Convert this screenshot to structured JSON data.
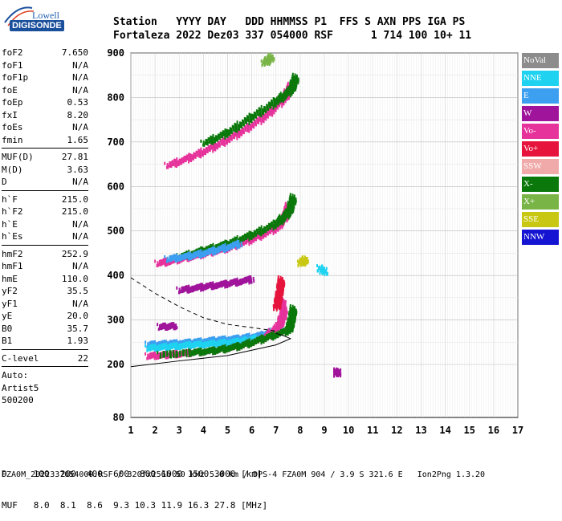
{
  "logo": {
    "brand": "Lowell",
    "product": "DIGISONDE"
  },
  "header": {
    "line1": "Station   YYYY DAY   DDD HHMMSS P1  FFS S AXN PPS IGA PS",
    "line2": "Fortaleza 2022 Dez03 337 054000 RSF      1 714 100 10+ 11"
  },
  "params": [
    {
      "k": "foF2",
      "v": "7.650"
    },
    {
      "k": "foF1",
      "v": "N/A"
    },
    {
      "k": "foF1p",
      "v": "N/A"
    },
    {
      "k": "foE",
      "v": "N/A"
    },
    {
      "k": "foEp",
      "v": "0.53"
    },
    {
      "k": "fxI",
      "v": "8.20"
    },
    {
      "k": "foEs",
      "v": "N/A"
    },
    {
      "k": "fmin",
      "v": "1.65"
    }
  ],
  "params2": [
    {
      "k": "MUF(D)",
      "v": "27.81"
    },
    {
      "k": "M(D)",
      "v": "3.63"
    },
    {
      "k": "D",
      "v": "N/A"
    }
  ],
  "params3": [
    {
      "k": "h`F",
      "v": "215.0"
    },
    {
      "k": "h`F2",
      "v": "215.0"
    },
    {
      "k": "h`E",
      "v": "N/A"
    },
    {
      "k": "h`Es",
      "v": "N/A"
    }
  ],
  "params4": [
    {
      "k": "hmF2",
      "v": "252.9"
    },
    {
      "k": "hmF1",
      "v": "N/A"
    },
    {
      "k": "hmE",
      "v": "110.0"
    },
    {
      "k": "yF2",
      "v": "35.5"
    },
    {
      "k": "yF1",
      "v": "N/A"
    },
    {
      "k": "yE",
      "v": "20.0"
    },
    {
      "k": "B0",
      "v": "35.7"
    },
    {
      "k": "B1",
      "v": "1.93"
    }
  ],
  "params5": [
    {
      "k": "C-level",
      "v": "22"
    }
  ],
  "auto": {
    "l1": "Auto:",
    "l2": "Artist5",
    "l3": "500200"
  },
  "legend": [
    {
      "label": "NoVal",
      "color": "#8c8c8c"
    },
    {
      "label": "NNE",
      "color": "#1ed2f0"
    },
    {
      "label": "E",
      "color": "#3c9ff0"
    },
    {
      "label": "W",
      "color": "#a0149b"
    },
    {
      "label": "Vo-",
      "color": "#e6329b"
    },
    {
      "label": "Vo+",
      "color": "#e6143c"
    },
    {
      "label": "SSW",
      "color": "#f0aaaa"
    },
    {
      "label": "X-",
      "color": "#0a780a"
    },
    {
      "label": "X+",
      "color": "#78b446"
    },
    {
      "label": "SSE",
      "color": "#c8c814"
    },
    {
      "label": "NNW",
      "color": "#1414d2"
    }
  ],
  "footer": {
    "d_row": "D     100  200  400  600  800 1000 1500 3000 [km]",
    "muf_row": "MUF   8.0  8.1  8.6  9.3 10.3 11.9 16.3 27.8 [MHz]"
  },
  "status": "FZA0M_2022337054000.RSF / 320fx256h 50 kHz 5.0 km / DPS-4 FZA0M 904 / 3.9 S 321.6 E   Ion2Png 1.3.20",
  "chart_data": {
    "type": "scatter",
    "xlim": [
      1,
      17
    ],
    "ylim": [
      80,
      900
    ],
    "x_ticks": [
      "1",
      "2",
      "3",
      "4",
      "5",
      "6",
      "7",
      "8",
      "9",
      "10",
      "11",
      "12",
      "13",
      "14",
      "15",
      "16",
      "17"
    ],
    "y_ticks": [
      "80",
      "200",
      "300",
      "400",
      "500",
      "600",
      "700",
      "800",
      "900"
    ],
    "profile_curve": [
      [
        0.0,
        195
      ],
      [
        3,
        208
      ],
      [
        5,
        220
      ],
      [
        6,
        232
      ],
      [
        7,
        244
      ],
      [
        7.6,
        258
      ],
      [
        7.3,
        265
      ],
      [
        7,
        270
      ]
    ],
    "dashed_curve": [
      [
        0.0,
        395
      ],
      [
        2,
        360
      ],
      [
        3,
        330
      ],
      [
        4,
        305
      ],
      [
        5,
        290
      ],
      [
        6,
        283
      ],
      [
        7,
        275
      ]
    ],
    "traces": [
      {
        "color": "#3c9ff0",
        "points": [
          [
            1.7,
            248
          ],
          [
            2.5,
            250
          ],
          [
            3.5,
            253
          ],
          [
            4.5,
            258
          ],
          [
            5.5,
            262
          ],
          [
            6.5,
            270
          ],
          [
            7.2,
            285
          ]
        ]
      },
      {
        "color": "#1ed2f0",
        "points": [
          [
            1.7,
            240
          ],
          [
            2.5,
            243
          ],
          [
            3.5,
            247
          ],
          [
            4.5,
            250
          ],
          [
            5.5,
            255
          ],
          [
            6.2,
            262
          ]
        ]
      },
      {
        "color": "#e6329b",
        "points": [
          [
            1.7,
            222
          ],
          [
            2.5,
            225
          ],
          [
            3.5,
            230
          ],
          [
            4.5,
            235
          ],
          [
            5.5,
            245
          ],
          [
            6.5,
            262
          ],
          [
            7.1,
            290
          ],
          [
            7.3,
            320
          ],
          [
            7.2,
            350
          ]
        ]
      },
      {
        "color": "#0a780a",
        "points": [
          [
            2.2,
            225
          ],
          [
            3.5,
            230
          ],
          [
            4.5,
            235
          ],
          [
            5.5,
            245
          ],
          [
            6.5,
            262
          ],
          [
            7.5,
            280
          ],
          [
            7.6,
            300
          ],
          [
            7.7,
            330
          ]
        ]
      },
      {
        "color": "#a0149b",
        "points": [
          [
            2.2,
            288
          ],
          [
            2.8,
            290
          ]
        ]
      },
      {
        "color": "#e6329b",
        "points": [
          [
            2.1,
            430
          ],
          [
            3,
            440
          ],
          [
            4,
            452
          ],
          [
            5,
            465
          ],
          [
            6,
            485
          ],
          [
            7,
            510
          ],
          [
            7.4,
            540
          ],
          [
            7.5,
            560
          ]
        ]
      },
      {
        "color": "#0a780a",
        "points": [
          [
            3,
            445
          ],
          [
            4,
            460
          ],
          [
            5,
            475
          ],
          [
            6,
            495
          ],
          [
            7,
            520
          ],
          [
            7.5,
            545
          ],
          [
            7.7,
            580
          ]
        ]
      },
      {
        "color": "#3c9ff0",
        "points": [
          [
            2.5,
            440
          ],
          [
            3.5,
            448
          ],
          [
            4.5,
            460
          ],
          [
            5.5,
            475
          ]
        ]
      },
      {
        "color": "#e6329b",
        "points": [
          [
            2.5,
            650
          ],
          [
            3.5,
            670
          ],
          [
            4.5,
            695
          ],
          [
            5.5,
            725
          ],
          [
            6.5,
            760
          ],
          [
            7.3,
            800
          ],
          [
            7.6,
            830
          ]
        ]
      },
      {
        "color": "#0a780a",
        "points": [
          [
            4,
            700
          ],
          [
            5,
            725
          ],
          [
            6,
            760
          ],
          [
            7,
            795
          ],
          [
            7.6,
            820
          ],
          [
            7.8,
            850
          ]
        ]
      },
      {
        "color": "#78b446",
        "points": [
          [
            6.5,
            880
          ],
          [
            6.8,
            895
          ]
        ]
      },
      {
        "color": "#a0149b",
        "points": [
          [
            3,
            370
          ],
          [
            4,
            378
          ],
          [
            5,
            385
          ],
          [
            6,
            395
          ]
        ]
      },
      {
        "color": "#e6143c",
        "points": [
          [
            7,
            330
          ],
          [
            7.1,
            360
          ],
          [
            7.2,
            395
          ]
        ]
      },
      {
        "color": "#1ed2f0",
        "points": [
          [
            8.8,
            420
          ],
          [
            9,
            410
          ]
        ]
      },
      {
        "color": "#c8c814",
        "points": [
          [
            8,
            430
          ],
          [
            8.2,
            440
          ]
        ]
      },
      {
        "color": "#a0149b",
        "points": [
          [
            9.5,
            182
          ],
          [
            9.5,
            188
          ]
        ]
      }
    ]
  }
}
